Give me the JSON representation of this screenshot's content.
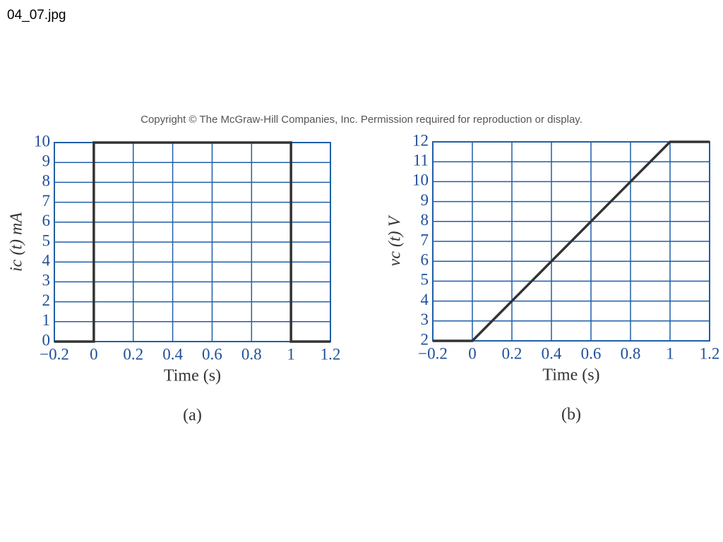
{
  "file_title": "04_07.jpg",
  "copyright": "Copyright © The McGraw-Hill Companies, Inc. Permission required for reproduction or display.",
  "chart_data": [
    {
      "type": "line",
      "ylabel": "ic (t) mA",
      "xlabel": "Time (s)",
      "caption": "(a)",
      "x": [
        -0.2,
        0,
        0,
        1,
        1,
        1.2
      ],
      "series": [
        {
          "color": "#333333",
          "values": [
            0,
            0,
            10,
            10,
            0,
            0
          ]
        }
      ],
      "xlim": [
        -0.2,
        1.2
      ],
      "xticks": [
        {
          "value": -0.2,
          "label": "−0.2"
        },
        0,
        0.2,
        0.4,
        0.6,
        0.8,
        1,
        1.2
      ],
      "ylim": [
        0,
        10
      ],
      "yticks": [
        0,
        1,
        2,
        3,
        4,
        5,
        6,
        7,
        8,
        9,
        10
      ],
      "grid": true,
      "grid_color": "#1f5fa8"
    },
    {
      "type": "line",
      "ylabel": "vc (t) V",
      "xlabel": "Time (s)",
      "caption": "(b)",
      "x": [
        -0.2,
        0,
        1,
        1.2
      ],
      "series": [
        {
          "color": "#333333",
          "values": [
            2,
            2,
            12,
            12
          ]
        }
      ],
      "xlim": [
        -0.2,
        1.2
      ],
      "xticks": [
        {
          "value": -0.2,
          "label": "−0.2"
        },
        0,
        0.2,
        0.4,
        0.6,
        0.8,
        1,
        1.2
      ],
      "ylim": [
        2,
        12
      ],
      "yticks": [
        2,
        3,
        4,
        5,
        6,
        7,
        8,
        9,
        10,
        11,
        12
      ],
      "grid": true,
      "grid_color": "#1f5fa8"
    }
  ]
}
